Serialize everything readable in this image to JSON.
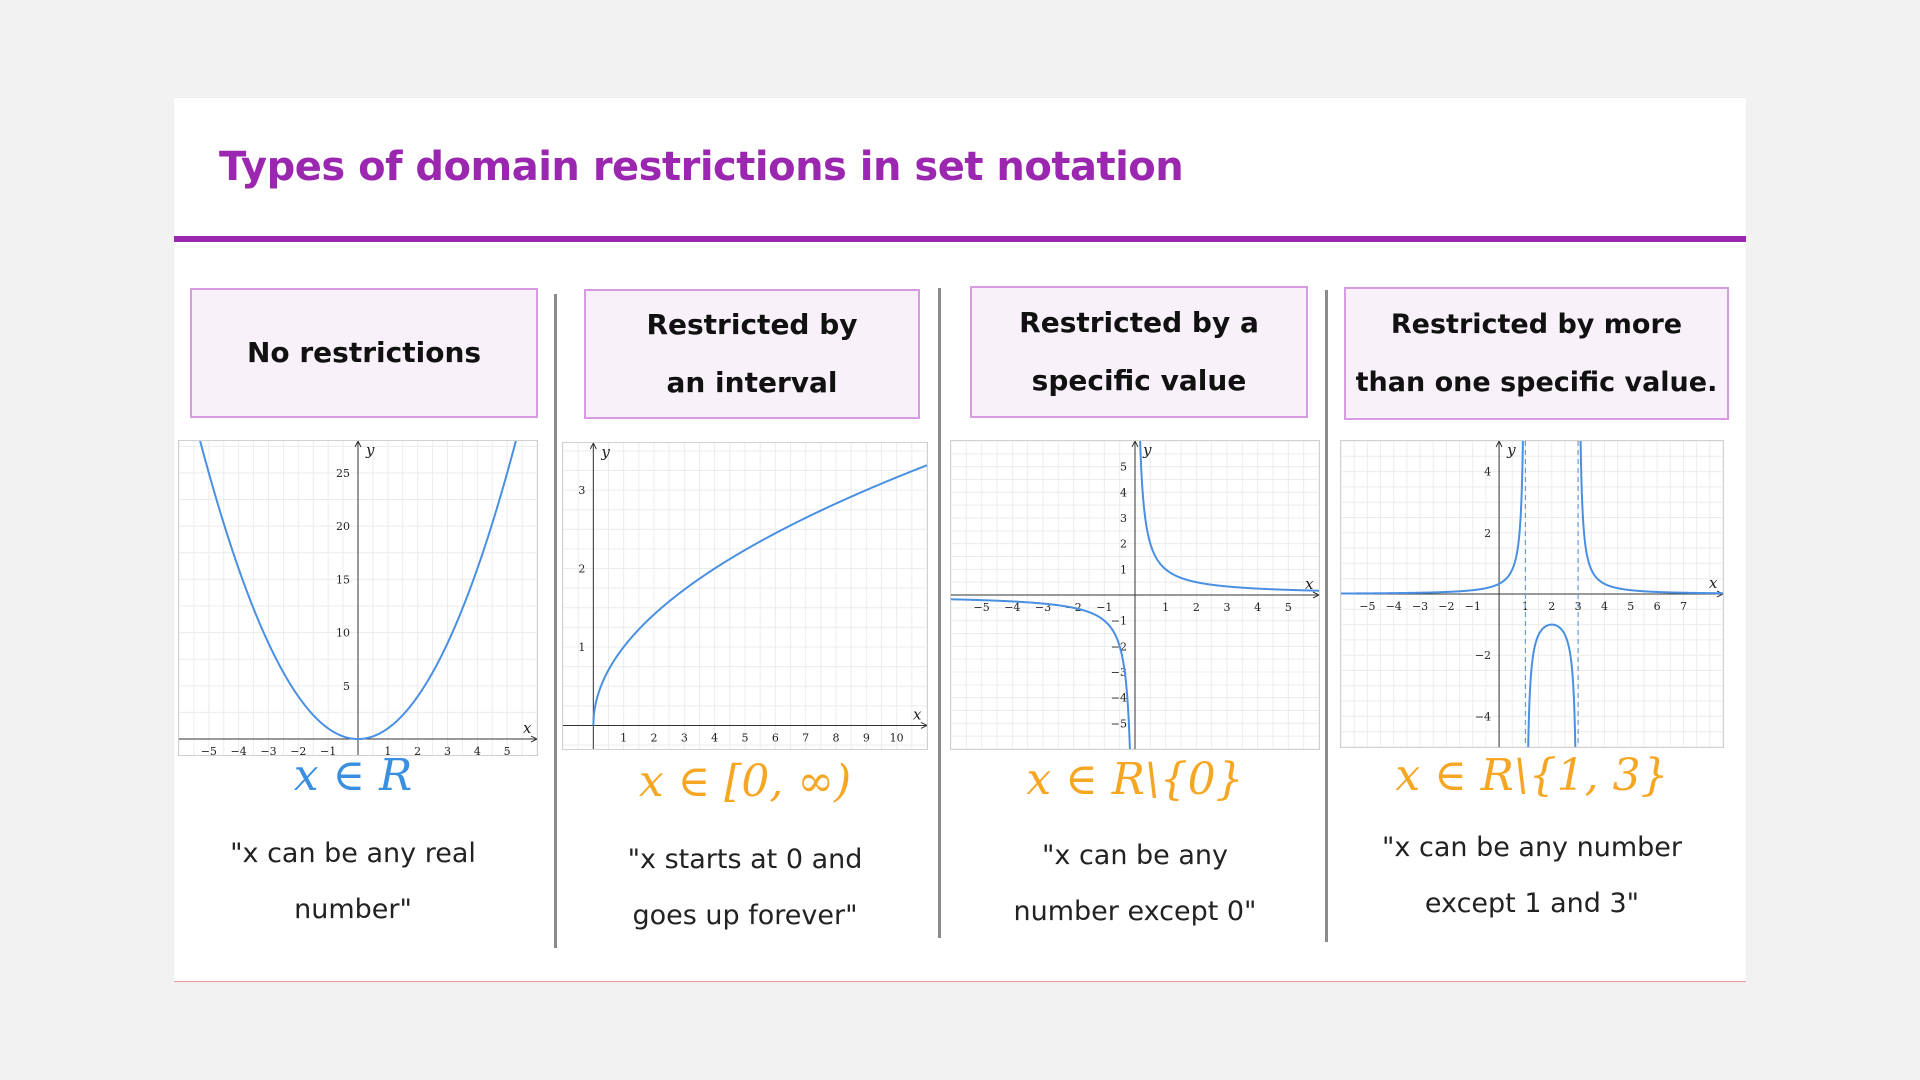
{
  "title": "Types of domain restrictions in set notation",
  "colors": {
    "title": "#9b27b0",
    "blue": "#3b8fe0",
    "orange": "#f5a623",
    "curve": "#4a90e2"
  },
  "columns": [
    {
      "label_line1": "No restrictions",
      "label_line2": "",
      "notation": "x ∈ R",
      "desc_line1": "\"x can be any real",
      "desc_line2": "number\""
    },
    {
      "label_line1": "Restricted by",
      "label_line2": "an interval",
      "notation": "x ∈ [0, ∞)",
      "desc_line1": "\"x starts at 0 and",
      "desc_line2": "goes up forever\""
    },
    {
      "label_line1": "Restricted by a",
      "label_line2": "specific value",
      "notation": "x ∈ R\\{0}",
      "desc_line1": "\"x can be any",
      "desc_line2": "number except 0\""
    },
    {
      "label_line1": "Restricted by more",
      "label_line2": "than one specific value.",
      "notation": "x ∈ R\\{1, 3}",
      "desc_line1": "\"x can be any number",
      "desc_line2": "except 1 and 3\""
    }
  ],
  "chart_data": [
    {
      "type": "line",
      "function": "y = x^2",
      "xlim": [
        -6,
        6
      ],
      "ylim": [
        -1.5,
        28
      ],
      "xticks": [
        "−5",
        "−4",
        "−3",
        "−2",
        "−1",
        "1",
        "2",
        "3",
        "4",
        "5"
      ],
      "yticks": [
        "5",
        "10",
        "15",
        "20",
        "25"
      ],
      "xlabel": "x",
      "ylabel": "y"
    },
    {
      "type": "line",
      "function": "y = sqrt(x)",
      "xlim": [
        -1,
        11
      ],
      "ylim": [
        -0.3,
        3.6
      ],
      "xticks": [
        "1",
        "2",
        "3",
        "4",
        "5",
        "6",
        "7",
        "8",
        "9",
        "10"
      ],
      "yticks": [
        "1",
        "2",
        "3"
      ],
      "xlabel": "x",
      "ylabel": "y"
    },
    {
      "type": "line",
      "function": "y = 1/x",
      "xlim": [
        -6,
        6
      ],
      "ylim": [
        -6,
        6
      ],
      "xticks": [
        "−5",
        "−4",
        "−3",
        "−2",
        "−1",
        "1",
        "2",
        "3",
        "4",
        "5"
      ],
      "yticks": [
        "−5",
        "−4",
        "−3",
        "−2",
        "−1",
        "1",
        "2",
        "3",
        "4",
        "5"
      ],
      "xlabel": "x",
      "ylabel": "y"
    },
    {
      "type": "line",
      "function": "y = 1/((x-1)(x-3))",
      "asymptotes": [
        1,
        3
      ],
      "xlim": [
        -6,
        8.5
      ],
      "ylim": [
        -5,
        5
      ],
      "xticks": [
        "−5",
        "−4",
        "−3",
        "−2",
        "−1",
        "1",
        "2",
        "3",
        "4",
        "5",
        "6",
        "7"
      ],
      "yticks": [
        "−4",
        "−2",
        "2",
        "4"
      ],
      "xlabel": "x",
      "ylabel": "y"
    }
  ]
}
